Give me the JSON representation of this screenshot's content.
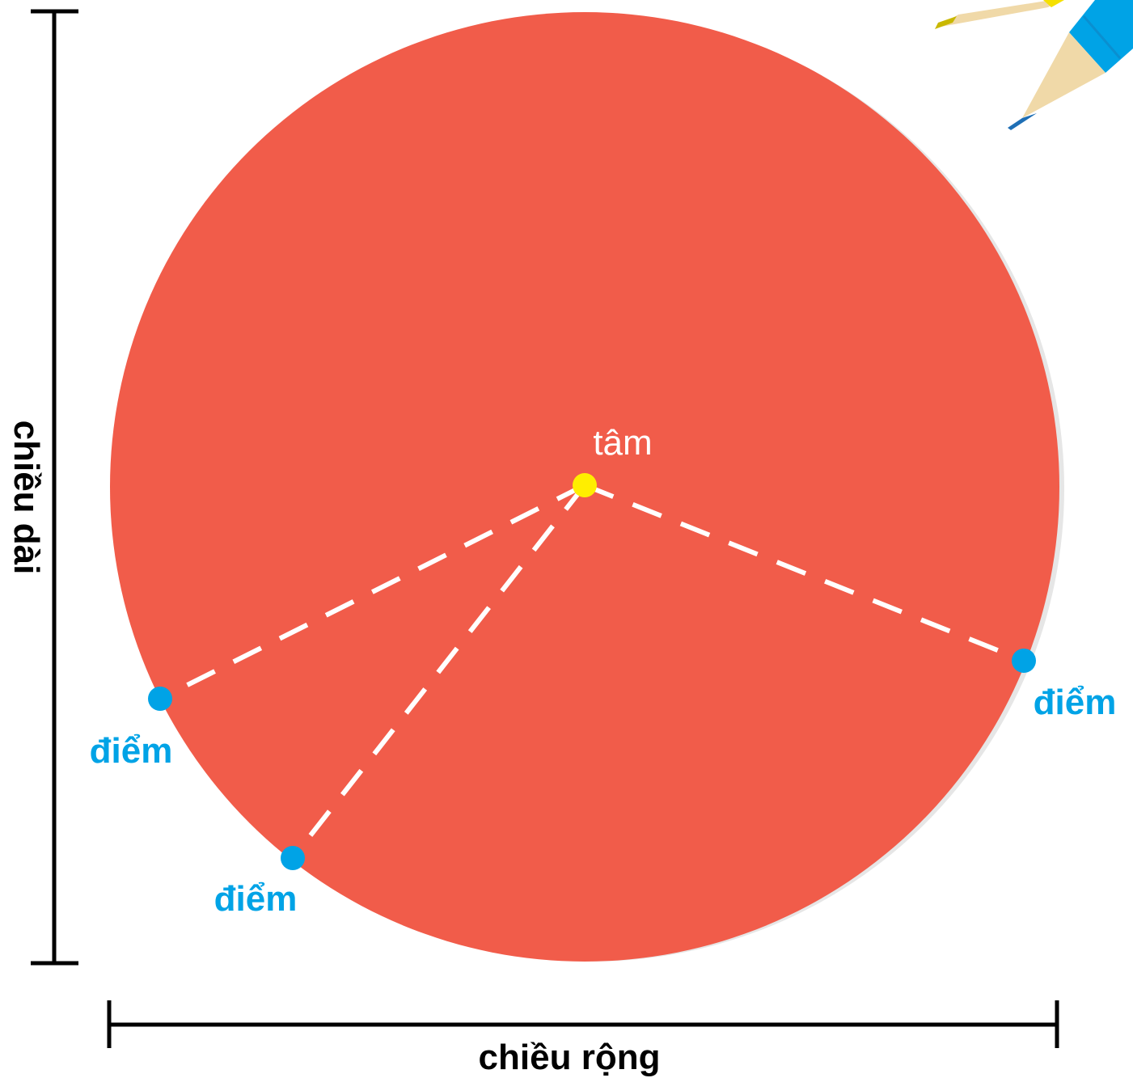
{
  "diagram": {
    "labels": {
      "center": "tâm",
      "point_left": "điểm",
      "point_bottom": "điểm",
      "point_right": "điểm",
      "height": "chiều dài",
      "width": "chiều rộng"
    },
    "colors": {
      "circle_fill": "#f15c4a",
      "center_dot": "#ffee00",
      "point_dot": "#00a3e6",
      "radius_line": "#ffffff",
      "dimension_line": "#000000",
      "pencil_blue": "#00a3e6",
      "pencil_yellow": "#f5e000",
      "pencil_wood": "#f0d9a8"
    },
    "icons": [
      "blue-pencil-icon",
      "yellow-pencil-icon"
    ]
  }
}
